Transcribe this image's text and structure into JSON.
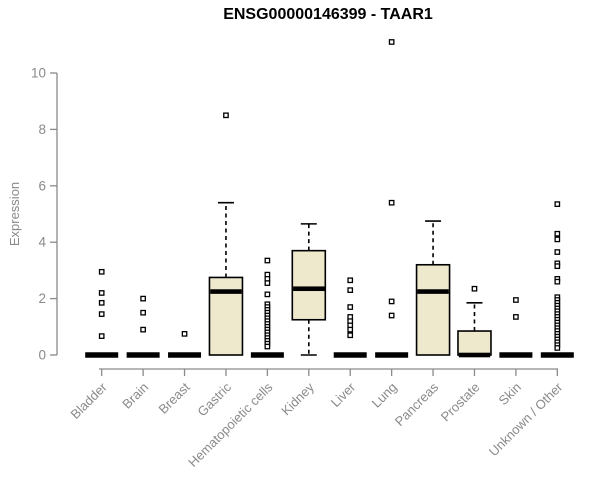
{
  "colors": {
    "background": "#FFFFFF",
    "title": "#000000",
    "axis": "#8A8A8A",
    "tick_label": "#8A8A8A",
    "box_fill": "#EEE8CD",
    "box_line": "#000000",
    "outlier": "#000000"
  },
  "chart_data": {
    "type": "boxplot",
    "title": "ENSG00000146399 - TAAR1",
    "ylabel": "Expression",
    "ylim": [
      0,
      10
    ],
    "yticks": [
      "0",
      "2",
      "4",
      "6",
      "8",
      "10"
    ],
    "grid": false,
    "categories": [
      "Bladder",
      "Brain",
      "Breast",
      "Gastric",
      "Hematopoietic cells",
      "Kidney",
      "Liver",
      "Lung",
      "Pancreas",
      "Prostate",
      "Skin",
      "Unknown / Other"
    ],
    "boxes": [
      {
        "category": "Bladder",
        "q1": 0,
        "median": 0,
        "q3": 0,
        "whisker_low": 0,
        "whisker_high": 0,
        "outliers": [
          2.95,
          2.2,
          1.85,
          1.45,
          0.67
        ]
      },
      {
        "category": "Brain",
        "q1": 0,
        "median": 0,
        "q3": 0,
        "whisker_low": 0,
        "whisker_high": 0,
        "outliers": [
          2.0,
          1.5,
          0.9
        ]
      },
      {
        "category": "Breast",
        "q1": 0,
        "median": 0,
        "q3": 0,
        "whisker_low": 0,
        "whisker_high": 0,
        "outliers": [
          0.75
        ]
      },
      {
        "category": "Gastric",
        "q1": 0,
        "median": 2.25,
        "q3": 2.75,
        "whisker_low": 0,
        "whisker_high": 5.4,
        "outliers": [
          8.5
        ]
      },
      {
        "category": "Hematopoietic cells",
        "q1": 0,
        "median": 0,
        "q3": 0,
        "whisker_low": 0,
        "whisker_high": 0,
        "outliers": [
          3.35,
          2.85,
          2.7,
          2.55,
          2.15,
          1.8,
          1.7,
          1.6,
          1.5,
          1.4,
          1.3,
          1.2,
          1.1,
          1.0,
          0.9,
          0.8,
          0.7,
          0.6,
          0.5,
          0.4,
          0.3
        ]
      },
      {
        "category": "Kidney",
        "q1": 1.25,
        "median": 2.35,
        "q3": 3.7,
        "whisker_low": 0,
        "whisker_high": 4.65,
        "outliers": []
      },
      {
        "category": "Liver",
        "q1": 0,
        "median": 0,
        "q3": 0,
        "whisker_low": 0,
        "whisker_high": 0,
        "outliers": [
          2.65,
          2.3,
          1.7,
          1.35,
          1.2,
          1.05,
          0.9,
          0.7
        ]
      },
      {
        "category": "Lung",
        "q1": 0,
        "median": 0,
        "q3": 0,
        "whisker_low": 0,
        "whisker_high": 0,
        "outliers": [
          11.1,
          5.4,
          1.9,
          1.4
        ]
      },
      {
        "category": "Pancreas",
        "q1": 0,
        "median": 2.25,
        "q3": 3.2,
        "whisker_low": 0,
        "whisker_high": 4.75,
        "outliers": []
      },
      {
        "category": "Prostate",
        "q1": 0,
        "median": 0,
        "q3": 0.85,
        "whisker_low": 0,
        "whisker_high": 1.85,
        "outliers": [
          2.35
        ]
      },
      {
        "category": "Skin",
        "q1": 0,
        "median": 0,
        "q3": 0,
        "whisker_low": 0,
        "whisker_high": 0,
        "outliers": [
          1.95,
          1.35
        ]
      },
      {
        "category": "Unknown / Other",
        "q1": 0,
        "median": 0,
        "q3": 0,
        "whisker_low": 0,
        "whisker_high": 0,
        "outliers": [
          5.35,
          4.3,
          4.1,
          3.65,
          3.25,
          3.15,
          2.7,
          2.6,
          2.05,
          1.95,
          1.85,
          1.75,
          1.65,
          1.55,
          1.45,
          1.35,
          1.25,
          1.15,
          1.05,
          0.95,
          0.85,
          0.75,
          0.65,
          0.55,
          0.45,
          0.35,
          0.25
        ]
      }
    ]
  }
}
